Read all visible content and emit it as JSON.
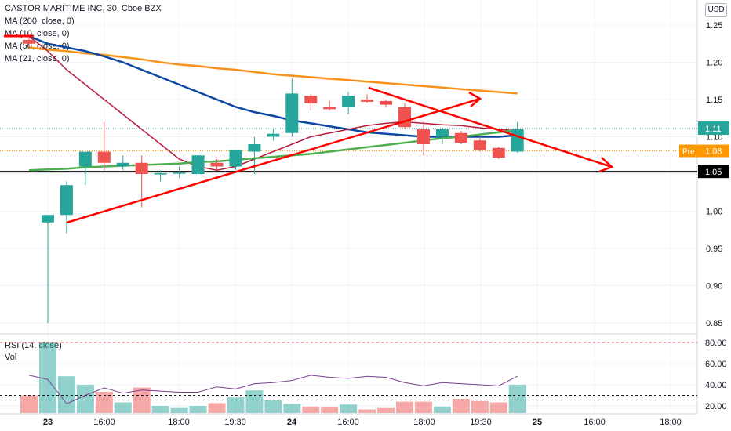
{
  "header": {
    "title": "CASTOR MARITIME INC, 30, Cboe BZX",
    "studies": [
      "MA (200, close, 0)",
      "MA (10, close, 0)",
      "MA (50, close, 0)",
      "MA (21, close, 0)"
    ],
    "currency_button": "USD"
  },
  "rsi_panel": {
    "labels": [
      "RSI (14, close)",
      "Vol"
    ]
  },
  "colors": {
    "up": "#26a69a",
    "down": "#ef5350",
    "ma200": "#f7931a",
    "ma50": "#0d47a1",
    "ma10": "#b71c3c",
    "ma21": "#4caf50",
    "rsi": "#7b3f8c",
    "drawing": "#ff0000"
  },
  "chart_data": {
    "type": "candlestick",
    "x_tick_labels": [
      "23",
      "16:00",
      "18:00",
      "19:30",
      "24",
      "16:00",
      "18:00",
      "19:30",
      "25",
      "16:00",
      "18:00"
    ],
    "y_ticks": [
      "1.25",
      "1.20",
      "1.15",
      "1.10",
      "1.05",
      "1.00",
      "0.95",
      "0.90",
      "0.85"
    ],
    "ylim": [
      0.82,
      1.265
    ],
    "candles": [
      {
        "o": 1.23,
        "h": 1.233,
        "l": 1.22,
        "c": 1.225
      },
      {
        "o": 0.985,
        "h": 0.995,
        "l": 0.85,
        "c": 0.995
      },
      {
        "o": 0.995,
        "h": 1.04,
        "l": 0.97,
        "c": 1.035
      },
      {
        "o": 1.06,
        "h": 1.08,
        "l": 1.035,
        "c": 1.08
      },
      {
        "o": 1.08,
        "h": 1.12,
        "l": 1.055,
        "c": 1.065
      },
      {
        "o": 1.06,
        "h": 1.075,
        "l": 1.055,
        "c": 1.065
      },
      {
        "o": 1.065,
        "h": 1.075,
        "l": 1.005,
        "c": 1.05
      },
      {
        "o": 1.05,
        "h": 1.055,
        "l": 1.04,
        "c": 1.051
      },
      {
        "o": 1.051,
        "h": 1.06,
        "l": 1.045,
        "c": 1.052
      },
      {
        "o": 1.05,
        "h": 1.078,
        "l": 1.048,
        "c": 1.075
      },
      {
        "o": 1.065,
        "h": 1.07,
        "l": 1.055,
        "c": 1.06
      },
      {
        "o": 1.06,
        "h": 1.082,
        "l": 1.055,
        "c": 1.082
      },
      {
        "o": 1.08,
        "h": 1.1,
        "l": 1.05,
        "c": 1.09
      },
      {
        "o": 1.1,
        "h": 1.11,
        "l": 1.095,
        "c": 1.104
      },
      {
        "o": 1.105,
        "h": 1.178,
        "l": 1.1,
        "c": 1.158
      },
      {
        "o": 1.155,
        "h": 1.157,
        "l": 1.135,
        "c": 1.145
      },
      {
        "o": 1.14,
        "h": 1.148,
        "l": 1.135,
        "c": 1.137
      },
      {
        "o": 1.14,
        "h": 1.16,
        "l": 1.13,
        "c": 1.155
      },
      {
        "o": 1.15,
        "h": 1.157,
        "l": 1.145,
        "c": 1.147
      },
      {
        "o": 1.148,
        "h": 1.15,
        "l": 1.14,
        "c": 1.143
      },
      {
        "o": 1.14,
        "h": 1.145,
        "l": 1.11,
        "c": 1.113
      },
      {
        "o": 1.11,
        "h": 1.12,
        "l": 1.075,
        "c": 1.09
      },
      {
        "o": 1.1,
        "h": 1.112,
        "l": 1.09,
        "c": 1.11
      },
      {
        "o": 1.105,
        "h": 1.108,
        "l": 1.09,
        "c": 1.092
      },
      {
        "o": 1.095,
        "h": 1.1,
        "l": 1.08,
        "c": 1.082
      },
      {
        "o": 1.085,
        "h": 1.087,
        "l": 1.07,
        "c": 1.072
      },
      {
        "o": 1.08,
        "h": 1.12,
        "l": 1.078,
        "c": 1.11
      }
    ],
    "volume": [
      0.25,
      1.0,
      0.52,
      0.4,
      0.3,
      0.15,
      0.36,
      0.1,
      0.07,
      0.1,
      0.14,
      0.22,
      0.32,
      0.18,
      0.13,
      0.09,
      0.08,
      0.12,
      0.05,
      0.07,
      0.16,
      0.16,
      0.09,
      0.2,
      0.17,
      0.15,
      0.4
    ],
    "volume_up": [
      false,
      true,
      true,
      true,
      false,
      true,
      false,
      true,
      true,
      true,
      false,
      true,
      true,
      true,
      true,
      false,
      false,
      true,
      false,
      false,
      false,
      false,
      true,
      false,
      false,
      false,
      true
    ],
    "rsi": [
      49,
      45,
      22,
      30,
      37,
      32,
      35,
      34,
      33,
      33,
      38,
      36,
      41,
      42,
      44,
      49,
      47,
      46,
      48,
      47,
      42,
      39,
      42,
      41,
      40,
      39,
      48
    ],
    "ma200": [
      1.22,
      1.217,
      1.215,
      1.212,
      1.21,
      1.207,
      1.204,
      1.2,
      1.197,
      1.195,
      1.192,
      1.19,
      1.187,
      1.184,
      1.182,
      1.18,
      1.178,
      1.176,
      1.174,
      1.172,
      1.17,
      1.168,
      1.166,
      1.164,
      1.162,
      1.16,
      1.158
    ],
    "ma50": [
      1.235,
      1.225,
      1.22,
      1.215,
      1.208,
      1.2,
      1.19,
      1.18,
      1.17,
      1.16,
      1.15,
      1.14,
      1.133,
      1.128,
      1.122,
      1.118,
      1.114,
      1.11,
      1.106,
      1.104,
      1.102,
      1.1,
      1.1,
      1.1,
      1.1,
      1.1,
      1.102
    ],
    "ma10": [
      1.235,
      1.215,
      1.19,
      1.17,
      1.15,
      1.13,
      1.11,
      1.09,
      1.07,
      1.06,
      1.055,
      1.06,
      1.07,
      1.08,
      1.09,
      1.1,
      1.105,
      1.11,
      1.115,
      1.118,
      1.12,
      1.118,
      1.116,
      1.115,
      1.112,
      1.11,
      1.108
    ],
    "ma21": [
      1.055,
      1.056,
      1.057,
      1.059,
      1.06,
      1.061,
      1.062,
      1.063,
      1.064,
      1.066,
      1.067,
      1.069,
      1.071,
      1.073,
      1.075,
      1.077,
      1.08,
      1.083,
      1.086,
      1.089,
      1.092,
      1.095,
      1.098,
      1.1,
      1.103,
      1.106,
      1.109
    ],
    "price_labels": [
      {
        "label": "",
        "value": "1.11",
        "price": 1.111
      },
      {
        "label": "Pre",
        "value": "1.08",
        "price": 1.081
      },
      {
        "label": "",
        "value": "1.05",
        "price": 1.053
      }
    ],
    "horizontal_line": 1.053,
    "rsi_ticks": [
      "80.00",
      "60.00",
      "40.00",
      "20.00"
    ],
    "rsi_ylim": [
      12,
      87
    ],
    "rsi_levels": [
      80,
      30
    ]
  }
}
